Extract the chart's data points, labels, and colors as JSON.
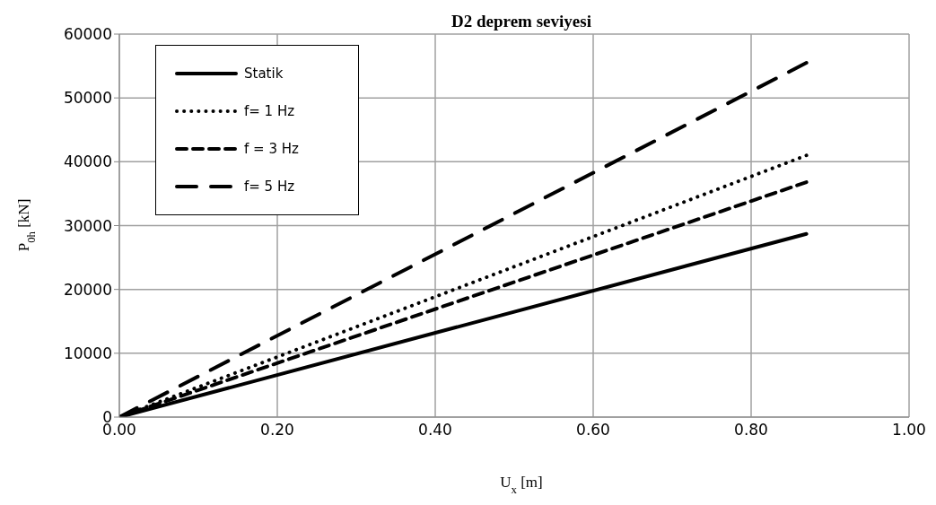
{
  "chart_data": {
    "type": "line",
    "title": "D2 deprem seviyesi",
    "xlabel": "U$_{x}$ [m]",
    "ylabel": "P$_{0h}$ [kN]",
    "x": [
      0,
      0.87
    ],
    "series": [
      {
        "name": "Statik",
        "color": "#000000",
        "line_style": "solid",
        "values": [
          0,
          28700
        ]
      },
      {
        "name": "f= 1 Hz",
        "color": "#000000",
        "line_style": "dotted",
        "values": [
          0,
          41000
        ]
      },
      {
        "name": "f = 3 Hz",
        "color": "#000000",
        "line_style": "dashed",
        "values": [
          0,
          36800
        ]
      },
      {
        "name": "f= 5 Hz",
        "color": "#000000",
        "line_style": "longdash",
        "values": [
          0,
          55500
        ]
      }
    ],
    "xlim": [
      0,
      1
    ],
    "xticks": [
      {
        "value": 0,
        "label": "0.00"
      },
      {
        "value": 0.2,
        "label": "0.20"
      },
      {
        "value": 0.4,
        "label": "0.40"
      },
      {
        "value": 0.6,
        "label": "0.60"
      },
      {
        "value": 0.8,
        "label": "0.80"
      },
      {
        "value": 1,
        "label": "1.00"
      }
    ],
    "ylim": [
      0,
      60000
    ],
    "yticks": [
      0,
      10000,
      20000,
      30000,
      40000,
      50000,
      60000
    ],
    "grid": true,
    "legend": "top left",
    "marker": "none"
  }
}
